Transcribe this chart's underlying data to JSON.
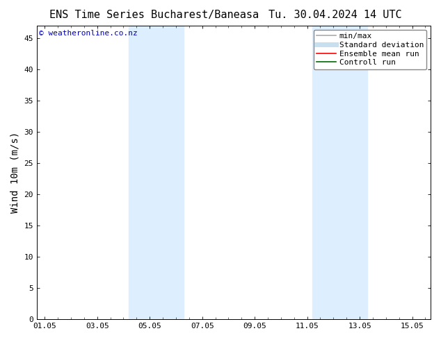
{
  "title": "ENS Time Series Bucharest/Baneasa",
  "title_right": "Tu. 30.04.2024 14 UTC",
  "ylabel": "Wind 10m (m/s)",
  "watermark": "© weatheronline.co.nz",
  "watermark_color": "#0000bb",
  "xlim": [
    -0.3,
    14.7
  ],
  "ylim": [
    0,
    47
  ],
  "yticks": [
    0,
    5,
    10,
    15,
    20,
    25,
    30,
    35,
    40,
    45
  ],
  "xtick_labels": [
    "01.05",
    "03.05",
    "05.05",
    "07.05",
    "09.05",
    "11.05",
    "13.05",
    "15.05"
  ],
  "xtick_positions": [
    0,
    2,
    4,
    6,
    8,
    10,
    12,
    14
  ],
  "background_color": "#ffffff",
  "shade_regions": [
    {
      "x_start": 3.2,
      "x_end": 5.3,
      "color": "#ddeeff"
    },
    {
      "x_start": 10.2,
      "x_end": 12.3,
      "color": "#ddeeff"
    }
  ],
  "legend_items": [
    {
      "label": "min/max",
      "color": "#aaaaaa",
      "lw": 1.2
    },
    {
      "label": "Standard deviation",
      "color": "#c8dff0",
      "lw": 5
    },
    {
      "label": "Ensemble mean run",
      "color": "#ff0000",
      "lw": 1.2
    },
    {
      "label": "Controll run",
      "color": "#006600",
      "lw": 1.2
    }
  ],
  "title_fontsize": 11,
  "ylabel_fontsize": 10,
  "tick_fontsize": 8,
  "watermark_fontsize": 8,
  "legend_fontsize": 8
}
